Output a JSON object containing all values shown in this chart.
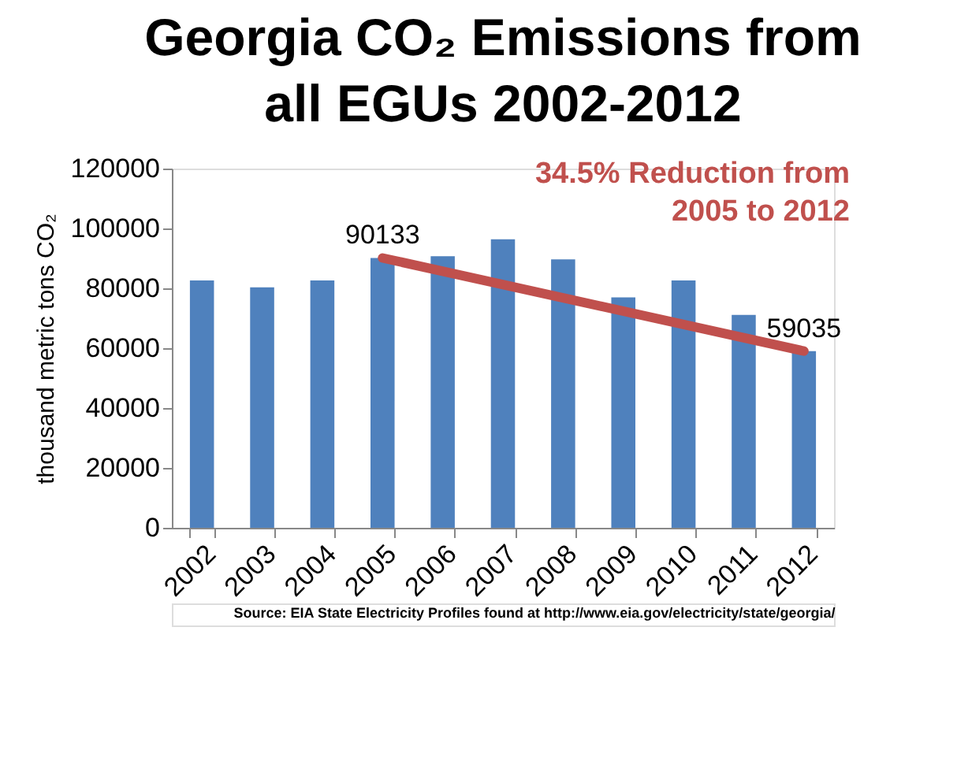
{
  "chart_data": {
    "type": "bar",
    "title": "Georgia CO₂ Emissions from all EGUs 2002-2012",
    "ylabel": "thousand metric tons CO₂",
    "categories": [
      "2002",
      "2003",
      "2004",
      "2005",
      "2006",
      "2007",
      "2008",
      "2009",
      "2010",
      "2011",
      "2012"
    ],
    "values": [
      82600,
      80300,
      82600,
      90133,
      90700,
      96400,
      89700,
      77000,
      82600,
      71100,
      59035
    ],
    "value_labels": [
      null,
      null,
      null,
      "90133",
      null,
      null,
      null,
      null,
      null,
      null,
      "59035"
    ],
    "color": "#4f81bd",
    "ylim": [
      0,
      120000
    ],
    "yticks": [
      0,
      20000,
      40000,
      60000,
      80000,
      100000,
      120000
    ],
    "grid": false,
    "annotations": [
      "34.5% Reduction from 2005 to 2012",
      "Source:  EIA State  Electricity  Profiles  found  at http://www.eia.gov/electricity/state/georgia/"
    ]
  }
}
